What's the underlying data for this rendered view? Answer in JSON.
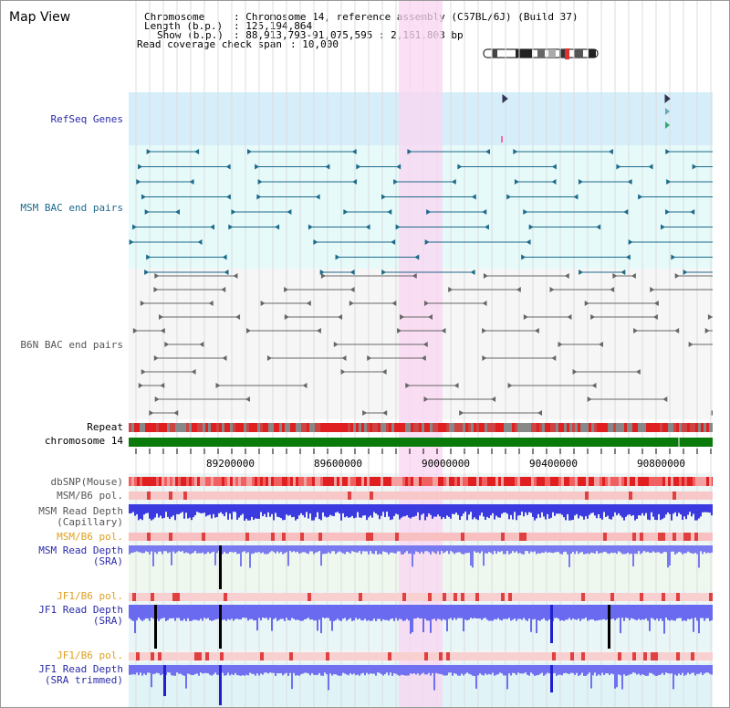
{
  "title": "Map View",
  "info": {
    "chromosome_label": "Chromosome",
    "chromosome_value": ": Chromosome 14, reference assembly (C57BL/6J) (Build 37)",
    "length_label": "Length (b.p.)",
    "length_value": ": 125,194,864",
    "show_label": "Show (b.p.)",
    "show_value": ": 88,913,793-91,075,595 : 2,161,803 bp",
    "coverage_label": "Read coverage check span",
    "coverage_value": ": 10,000"
  },
  "tracks": {
    "refseq": "RefSeq Genes",
    "msm_bac": "MSM BAC end pairs",
    "b6n_bac": "B6N BAC end pairs",
    "repeat": "Repeat",
    "chromosome": "chromosome 14",
    "dbsnp": "dbSNP(Mouse)",
    "msm_b6_pol_1": "MSM/B6 pol.",
    "msm_read_depth_cap_1": "MSM Read Depth",
    "msm_read_depth_cap_2": "(Capillary)",
    "msm_b6_pol_2": "MSM/B6 pol.",
    "msm_read_depth_sra_1": "MSM Read Depth",
    "msm_read_depth_sra_2": "(SRA)",
    "jf1_b6_pol_1": "JF1/B6 pol.",
    "jf1_read_depth_sra_1": "JF1 Read Depth",
    "jf1_read_depth_sra_2": "(SRA)",
    "jf1_b6_pol_2": "JF1/B6 pol.",
    "jf1_read_depth_trim_1": "JF1 Read Depth",
    "jf1_read_depth_trim_2": "(SRA trimmed)"
  },
  "axis_ticks": [
    "89200000",
    "89600000",
    "90000000",
    "90400000",
    "90800000"
  ],
  "colors": {
    "refseq_bg": "#d6eefa",
    "msm_bg": "#e6fafa",
    "b6n_bg": "#f6f6f6",
    "highlight": "#f9d6f2",
    "chromosome": "#0a7a0a",
    "msm_feature": "#1d6a8a",
    "b6n_feature": "#666666",
    "depth_blue": "#3a3ae0",
    "snp_red": "#e03030",
    "label_blue": "#2a2aa8",
    "label_orange": "#e0a020"
  }
}
